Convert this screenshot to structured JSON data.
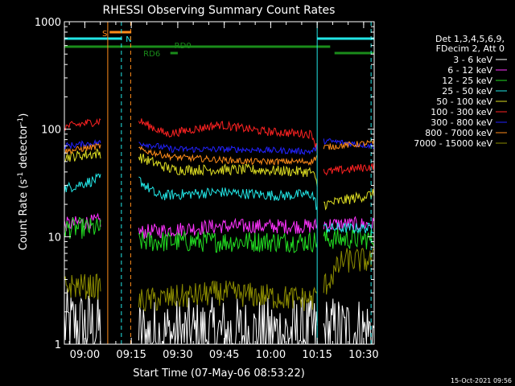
{
  "chart_data": {
    "type": "line",
    "title": "RHESSI Observing Summary Count Rates",
    "xlabel": "Start Time (07-May-06 08:53:22)",
    "ylabel_main": "Count Rate (s",
    "ylabel_sup1": "-1",
    "ylabel_mid": " detector",
    "ylabel_sup2": "-1",
    "ylabel_end": ")",
    "yscale": "log",
    "ylim": [
      1,
      1000
    ],
    "xlim_minutes": [
      0,
      100
    ],
    "x_ticks": [
      {
        "label": "09:00",
        "min": 6.6
      },
      {
        "label": "09:15",
        "min": 21.6
      },
      {
        "label": "09:30",
        "min": 36.6
      },
      {
        "label": "09:45",
        "min": 51.6
      },
      {
        "label": "10:00",
        "min": 66.6
      },
      {
        "label": "10:15",
        "min": 81.6
      },
      {
        "label": "10:30",
        "min": 96.6
      }
    ],
    "y_ticks": [
      {
        "label": "1",
        "v": 1
      },
      {
        "label": "10",
        "v": 10
      },
      {
        "label": "100",
        "v": 100
      },
      {
        "label": "1000",
        "v": 1000
      }
    ],
    "legend_header": [
      "Det 1,3,4,5,6,9,",
      "FDecim 2, Att 0"
    ],
    "flags": [
      {
        "label": "S",
        "color": "#ff8c1a",
        "segments": [
          [
            14.6,
            21.6
          ]
        ]
      },
      {
        "label": "N",
        "color": "#22e6e6",
        "segments": [
          [
            0,
            18.6
          ],
          [
            81.6,
            100
          ]
        ]
      },
      {
        "label": "RD0",
        "color": "#1a8c1a",
        "segments": [
          [
            0,
            85.8
          ]
        ]
      },
      {
        "label": "RD6",
        "color": "#1a8c1a",
        "segments": [
          [
            34.2,
            36.6
          ],
          [
            87.2,
            100
          ]
        ]
      }
    ],
    "vlines": [
      {
        "min": 14.0,
        "color": "#ff8c1a",
        "dash": false
      },
      {
        "min": 18.4,
        "color": "#22e6e6",
        "dash": true
      },
      {
        "min": 21.4,
        "color": "#ff8c1a",
        "dash": true
      },
      {
        "min": 81.6,
        "color": "#22e6e6",
        "dash": false
      },
      {
        "min": 99.0,
        "color": "#22e6e6",
        "dash": true
      }
    ],
    "gaps": [
      [
        12.0,
        23.8
      ],
      [
        81.6,
        83.5
      ]
    ],
    "series": [
      {
        "name": "3 - 6 keV",
        "color": "#ffffff",
        "knots": [
          [
            0,
            1.5
          ],
          [
            12,
            1.4
          ],
          [
            24,
            1.2
          ],
          [
            100,
            1.3
          ]
        ],
        "noise": 0.35
      },
      {
        "name": "6 - 12 keV",
        "color": "#ff33ff",
        "knots": [
          [
            0,
            13
          ],
          [
            12,
            14
          ],
          [
            24,
            11
          ],
          [
            50,
            12.5
          ],
          [
            80,
            12.5
          ],
          [
            84,
            13
          ],
          [
            100,
            13
          ]
        ],
        "noise": 0.07
      },
      {
        "name": "12 - 25 keV",
        "color": "#22dd22",
        "knots": [
          [
            0,
            12
          ],
          [
            12,
            12
          ],
          [
            24,
            9
          ],
          [
            60,
            9
          ],
          [
            80,
            9
          ],
          [
            84,
            9.5
          ],
          [
            100,
            9.5
          ]
        ],
        "noise": 0.1
      },
      {
        "name": "25 - 50 keV",
        "color": "#22e6e6",
        "knots": [
          [
            0,
            28
          ],
          [
            12,
            35
          ],
          [
            24,
            34
          ],
          [
            30,
            24
          ],
          [
            50,
            26
          ],
          [
            70,
            24
          ],
          [
            80,
            25
          ],
          [
            84,
            12
          ],
          [
            100,
            12
          ]
        ],
        "noise": 0.05
      },
      {
        "name": "50 - 100 keV",
        "color": "#dddd22",
        "knots": [
          [
            0,
            55
          ],
          [
            12,
            60
          ],
          [
            24,
            55
          ],
          [
            35,
            42
          ],
          [
            60,
            42
          ],
          [
            80,
            40
          ],
          [
            84,
            20
          ],
          [
            100,
            25
          ]
        ],
        "noise": 0.05
      },
      {
        "name": "100 - 300 keV",
        "color": "#ff2222",
        "knots": [
          [
            0,
            105
          ],
          [
            12,
            120
          ],
          [
            24,
            120
          ],
          [
            33,
            90
          ],
          [
            50,
            110
          ],
          [
            65,
            95
          ],
          [
            80,
            90
          ],
          [
            84,
            40
          ],
          [
            100,
            45
          ]
        ],
        "noise": 0.04
      },
      {
        "name": "300 - 800 keV",
        "color": "#2222ff",
        "knots": [
          [
            0,
            70
          ],
          [
            12,
            75
          ],
          [
            24,
            75
          ],
          [
            35,
            65
          ],
          [
            55,
            65
          ],
          [
            80,
            62
          ],
          [
            84,
            78
          ],
          [
            100,
            70
          ]
        ],
        "noise": 0.03
      },
      {
        "name": "800 - 7000 keV",
        "color": "#ff8c1a",
        "knots": [
          [
            0,
            62
          ],
          [
            12,
            70
          ],
          [
            24,
            65
          ],
          [
            35,
            55
          ],
          [
            60,
            50
          ],
          [
            80,
            50
          ],
          [
            84,
            68
          ],
          [
            100,
            75
          ]
        ],
        "noise": 0.03
      },
      {
        "name": "7000 - 15000 keV",
        "color": "#8c8c00",
        "knots": [
          [
            0,
            3.5
          ],
          [
            12,
            3.4
          ],
          [
            24,
            2.5
          ],
          [
            50,
            3.0
          ],
          [
            80,
            2.6
          ],
          [
            84,
            3.5
          ],
          [
            90,
            6
          ],
          [
            100,
            6
          ]
        ],
        "noise": 0.12
      }
    ],
    "footer_stamp": "15-Oct-2021 09:56"
  }
}
